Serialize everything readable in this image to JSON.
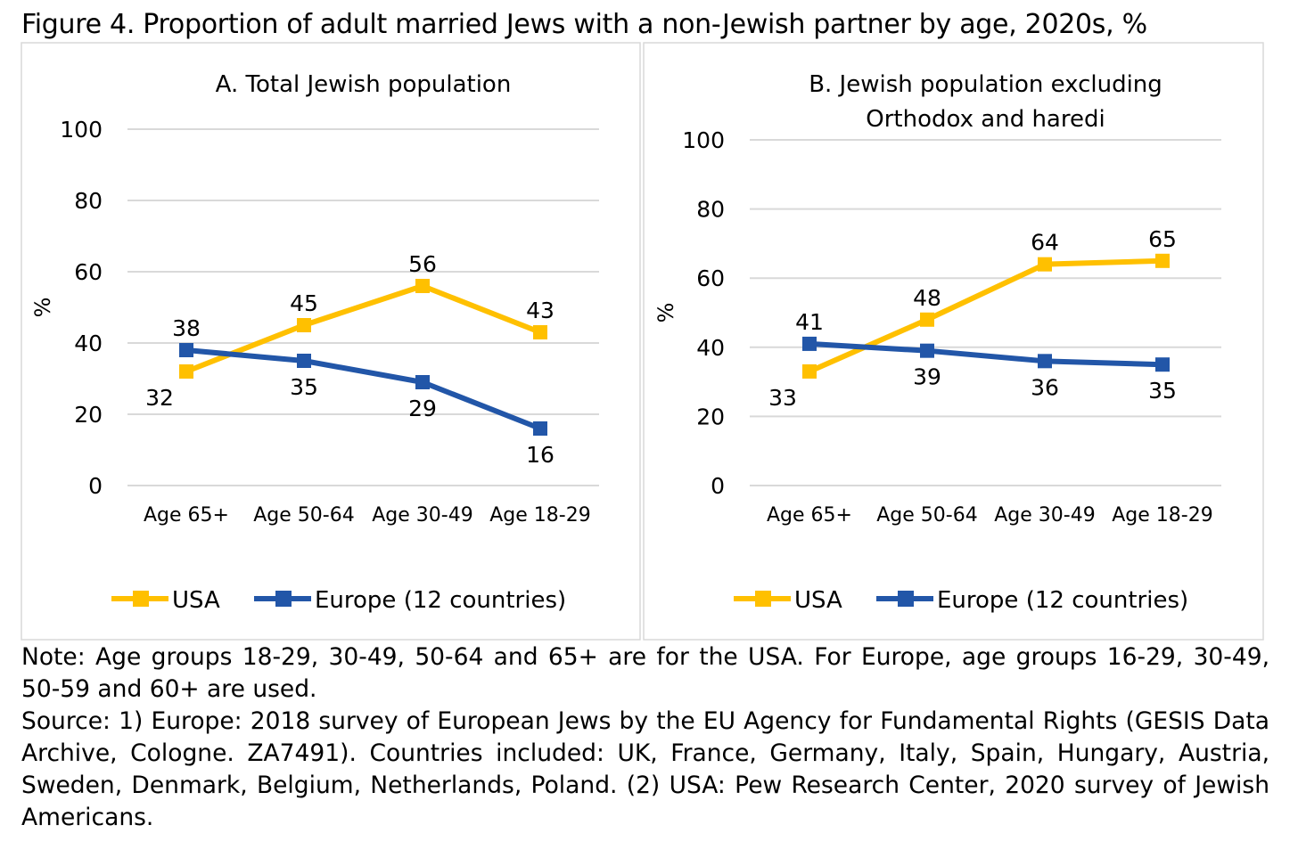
{
  "title": "Figure 4. Proportion of adult married Jews with a non-Jewish partner by age, 2020s, %",
  "colors": {
    "USA": "#FFC000",
    "Europe": "#2256A8",
    "grid": "#D9D9D9",
    "border": "#D9D9D9"
  },
  "chart_data": [
    {
      "type": "line",
      "title": "A. Total Jewish population",
      "title_lines": [
        "A. Total Jewish population"
      ],
      "ylabel": "%",
      "xlabel": "",
      "ylim": [
        0,
        100
      ],
      "yticks": [
        0,
        20,
        40,
        60,
        80,
        100
      ],
      "grid": true,
      "legend": "bottom",
      "categories": [
        "Age 65+",
        "Age 50-64",
        "Age 30-49",
        "Age 18-29"
      ],
      "series": [
        {
          "name": "USA",
          "values": [
            32,
            45,
            56,
            43
          ]
        },
        {
          "name": "Europe (12 countries)",
          "values": [
            38,
            35,
            29,
            16
          ]
        }
      ]
    },
    {
      "type": "line",
      "title": "B. Jewish population excluding Orthodox and haredi",
      "title_lines": [
        "B. Jewish population excluding",
        "Orthodox and haredi"
      ],
      "ylabel": "%",
      "xlabel": "",
      "ylim": [
        0,
        100
      ],
      "yticks": [
        0,
        20,
        40,
        60,
        80,
        100
      ],
      "grid": true,
      "legend": "bottom",
      "categories": [
        "Age 65+",
        "Age 50-64",
        "Age 30-49",
        "Age 18-29"
      ],
      "series": [
        {
          "name": "USA",
          "values": [
            33,
            48,
            64,
            65
          ]
        },
        {
          "name": "Europe (12 countries)",
          "values": [
            41,
            39,
            36,
            35
          ]
        }
      ]
    }
  ],
  "notes": {
    "note": "Note: Age groups 18-29, 30-49, 50-64 and 65+ are for the USA. For Europe, age groups 16-29, 30-49, 50-59 and 60+ are used.",
    "source": "Source: 1) Europe: 2018 survey of European Jews by the EU Agency for Fundamental Rights (GESIS Data Archive, Cologne. ZA7491). Countries included: UK, France, Germany, Italy, Spain, Hungary, Austria, Sweden, Denmark, Belgium, Netherlands, Poland. (2) USA: Pew Research Center, 2020 survey of Jewish Americans."
  }
}
